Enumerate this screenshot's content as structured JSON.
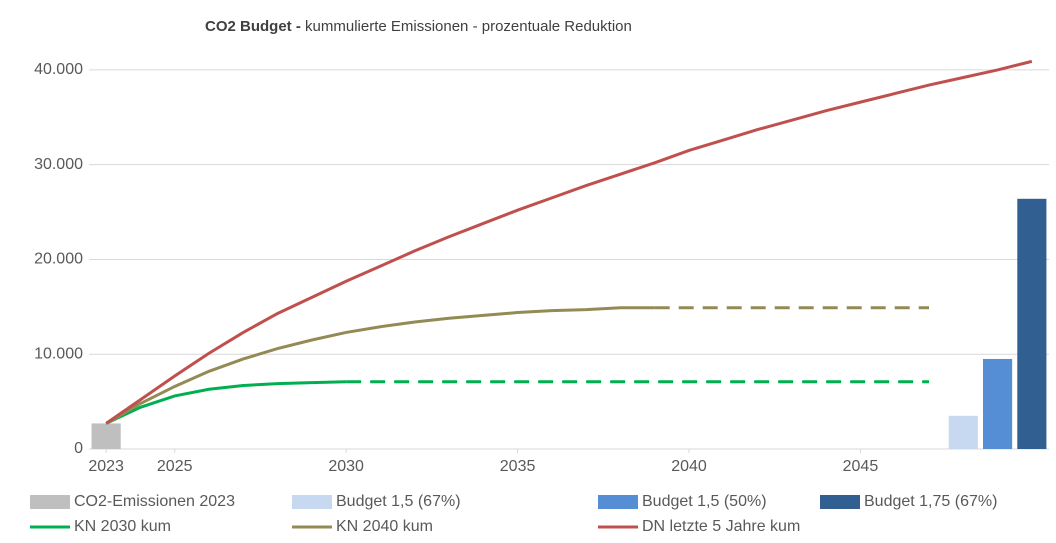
{
  "chart_data": {
    "type": "combo",
    "title_bold": "CO2 Budget -",
    "title": "kummulierte Emissionen - prozentuale Reduktion",
    "xlim": [
      2022.5,
      2050.5
    ],
    "xticks": [
      2023,
      2025,
      2030,
      2035,
      2040,
      2045
    ],
    "ylim": [
      0,
      44000
    ],
    "yticks": [
      0,
      {
        "value": 10000,
        "label": "10.000"
      },
      {
        "value": 20000,
        "label": "20.000"
      },
      {
        "value": 30000,
        "label": "30.000"
      },
      {
        "value": 40000,
        "label": "40.000"
      }
    ],
    "grid": true,
    "series": [
      {
        "name": "CO2-Emissionen 2023",
        "type": "bar",
        "color": "#bfbfbf",
        "x": [
          2023
        ],
        "values": [
          2700
        ]
      },
      {
        "name": "Budget 1,5 (67%)",
        "type": "bar",
        "color": "#c6d9f1",
        "x": [
          2048
        ],
        "values": [
          3500
        ]
      },
      {
        "name": "Budget 1,5 (50%)",
        "type": "bar",
        "color": "#558ed5",
        "x": [
          2049
        ],
        "values": [
          9500
        ]
      },
      {
        "name": "Budget 1,75 (67%)",
        "type": "bar",
        "color": "#325f91",
        "x": [
          2050
        ],
        "values": [
          26400
        ]
      },
      {
        "name": "KN 2030 kum",
        "type": "line",
        "color": "#00b050",
        "dashed_after": 2030,
        "x": [
          2023,
          2024,
          2025,
          2026,
          2027,
          2028,
          2029,
          2030,
          2031,
          2032,
          2033,
          2034,
          2035,
          2036,
          2037,
          2038,
          2039,
          2040,
          2041,
          2042,
          2043,
          2044,
          2045,
          2046,
          2047
        ],
        "values": [
          2700,
          4400,
          5600,
          6300,
          6700,
          6900,
          7000,
          7100,
          7100,
          7100,
          7100,
          7100,
          7100,
          7100,
          7100,
          7100,
          7100,
          7100,
          7100,
          7100,
          7100,
          7100,
          7100,
          7100,
          7100
        ]
      },
      {
        "name": "KN 2040 kum",
        "type": "line",
        "color": "#948a54",
        "dashed_after": 2039,
        "x": [
          2023,
          2024,
          2025,
          2026,
          2027,
          2028,
          2029,
          2030,
          2031,
          2032,
          2033,
          2034,
          2035,
          2036,
          2037,
          2038,
          2039,
          2040,
          2041,
          2042,
          2043,
          2044,
          2045,
          2046,
          2047
        ],
        "values": [
          2700,
          4800,
          6600,
          8200,
          9500,
          10600,
          11500,
          12300,
          12900,
          13400,
          13800,
          14100,
          14400,
          14600,
          14700,
          14900,
          14900,
          14900,
          14900,
          14900,
          14900,
          14900,
          14900,
          14900,
          14900
        ]
      },
      {
        "name": "DN letzte 5 Jahre kum",
        "type": "line",
        "color": "#c0504d",
        "x": [
          2023,
          2024,
          2025,
          2026,
          2027,
          2028,
          2029,
          2030,
          2031,
          2032,
          2033,
          2034,
          2035,
          2036,
          2037,
          2038,
          2039,
          2040,
          2041,
          2042,
          2043,
          2044,
          2045,
          2046,
          2047,
          2048,
          2049,
          2050
        ],
        "values": [
          2700,
          5200,
          7700,
          10100,
          12300,
          14300,
          16000,
          17700,
          19300,
          20900,
          22400,
          23800,
          25200,
          26500,
          27800,
          29000,
          30200,
          31500,
          32600,
          33700,
          34700,
          35700,
          36600,
          37500,
          38400,
          39200,
          40000,
          40900
        ]
      }
    ]
  }
}
